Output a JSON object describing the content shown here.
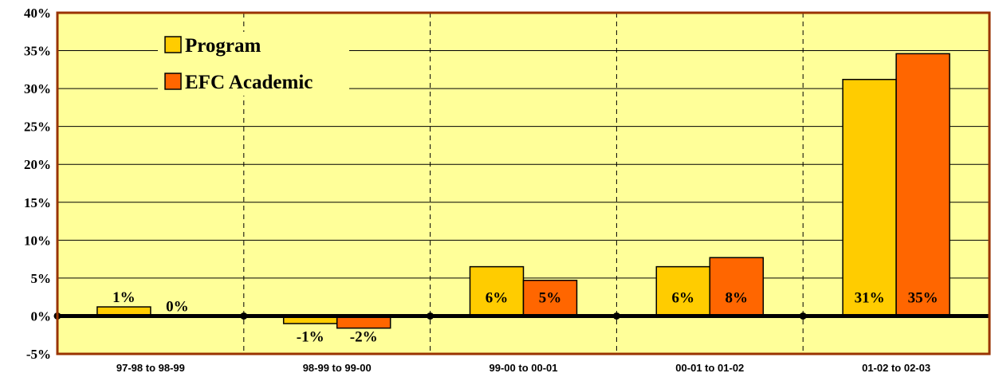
{
  "chart_data": {
    "type": "bar",
    "title": "",
    "xlabel": "",
    "ylabel": "",
    "categories": [
      "97-98 to 98-99",
      "98-99 to 99-00",
      "99-00 to 00-01",
      "00-01 to 01-02",
      "01-02 to 02-03"
    ],
    "series": [
      {
        "name": "Program",
        "values": [
          1.2,
          -1.0,
          6.5,
          6.5,
          31.2
        ],
        "labels": [
          "1%",
          "-1%",
          "6%",
          "6%",
          "31%"
        ],
        "color": "#FFCC00"
      },
      {
        "name": "EFC Academic",
        "values": [
          0.0,
          -1.6,
          4.7,
          7.7,
          34.6
        ],
        "labels": [
          "0%",
          "-2%",
          "5%",
          "8%",
          "35%"
        ],
        "color": "#FF6600"
      }
    ],
    "ylim": [
      -5,
      40
    ],
    "yticks": [
      40,
      35,
      30,
      25,
      20,
      15,
      10,
      5,
      0,
      -5
    ],
    "ytick_labels": [
      "40%",
      "35%",
      "30%",
      "25%",
      "20%",
      "15%",
      "10%",
      "5%",
      "0%",
      "-5%"
    ],
    "grid": true,
    "legend_position": "top-left",
    "colors": {
      "plot_background": "#FFFF99",
      "plot_border": "#993300",
      "zero_line": "#000000"
    }
  }
}
